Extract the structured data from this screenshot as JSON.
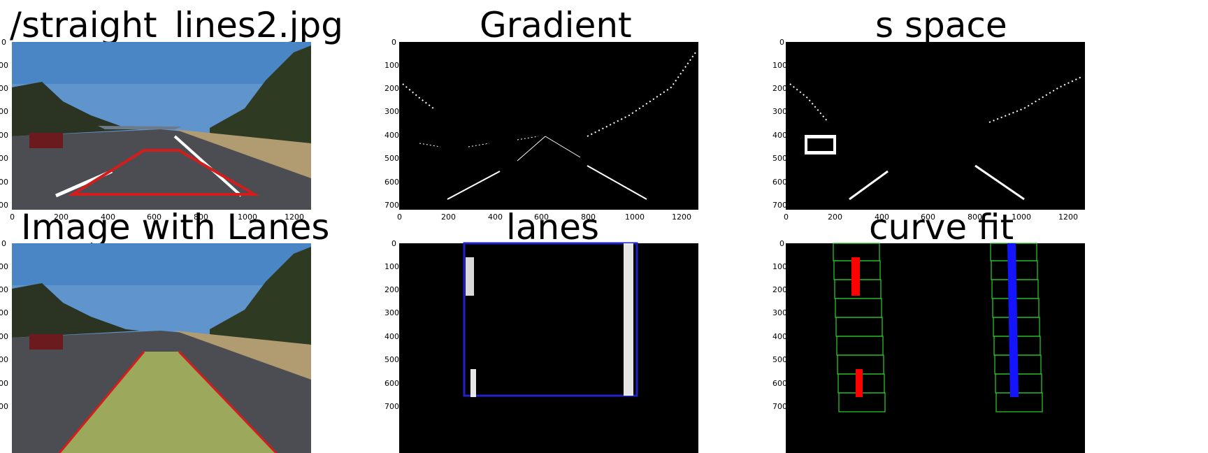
{
  "titles": {
    "p1": "/straight_lines2.jpg",
    "p2": "Gradient",
    "p3": "s space",
    "p4": "Image with Lanes",
    "p5": "lanes",
    "p6": "curve fit"
  },
  "axes": {
    "x_ticks": [
      "0",
      "200",
      "400",
      "600",
      "800",
      "1000",
      "1200"
    ],
    "y_ticks_left_clipped": [
      "0",
      "00",
      "00",
      "00",
      "00",
      "00",
      "00",
      "00"
    ],
    "y_ticks": [
      "0",
      "100",
      "200",
      "300",
      "400",
      "500",
      "600",
      "700"
    ],
    "y_ticks_bottom_clipped": [
      "0",
      "00",
      "00",
      "00",
      "00",
      "00",
      "00",
      "00"
    ]
  },
  "colors": {
    "sky": "#5f95cc",
    "road": "#4b4d52",
    "grass": "#b19c72",
    "trees": "#2b3322",
    "lane_fill": "#a5b25c",
    "red_poly": "#d31d1d",
    "blue_box": "#1f23c8",
    "green_win": "#2bd12b"
  }
}
